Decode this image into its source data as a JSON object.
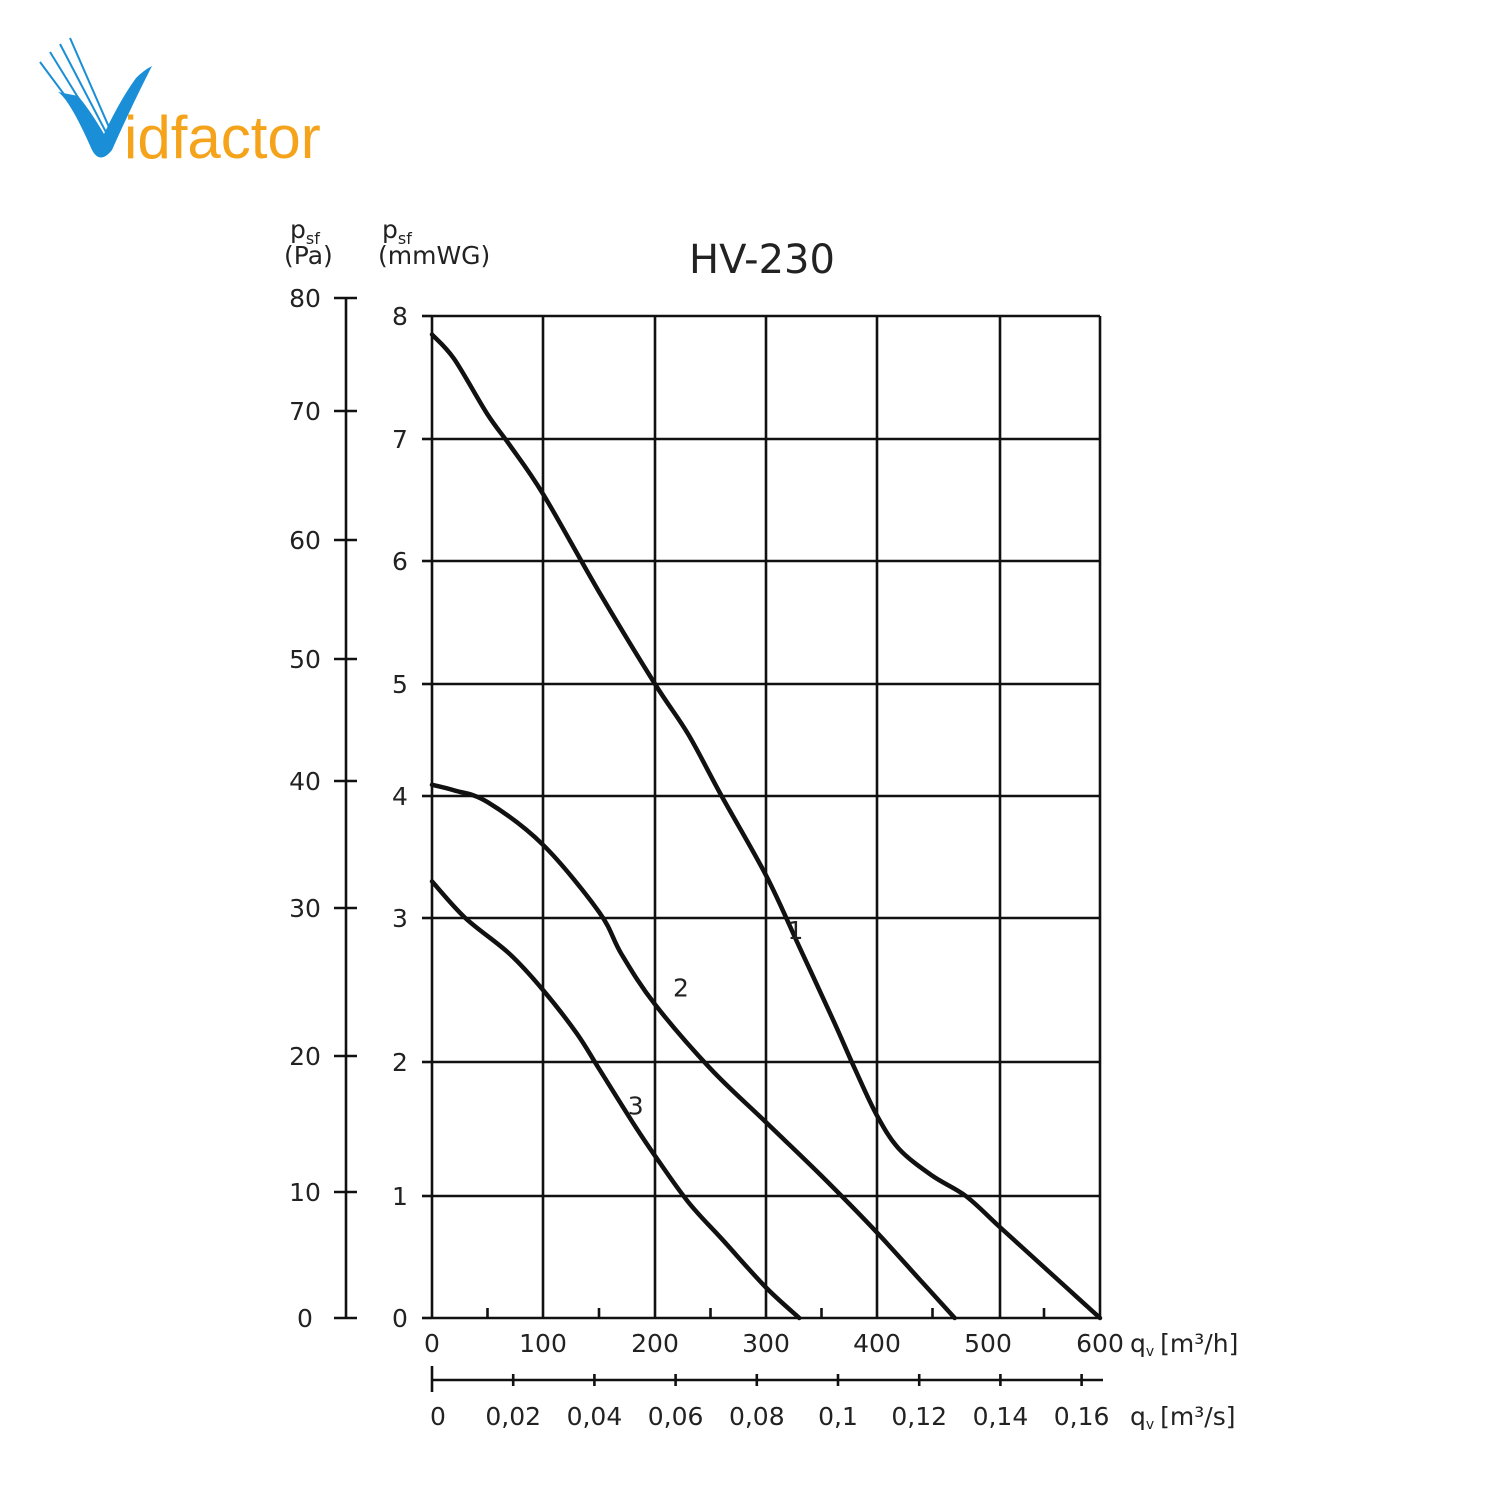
{
  "logo": {
    "text_v": "V",
    "text_rest": "idfactor",
    "color_blue": "#1a8ed6",
    "color_orange": "#f5a31b"
  },
  "chart_data": {
    "type": "line",
    "title": "HV-230",
    "axes": {
      "y_pa": {
        "label_main": "p",
        "label_sub": "sf",
        "label_unit": "(Pa)",
        "ticks": [
          0,
          10,
          20,
          30,
          40,
          50,
          60,
          70,
          80
        ],
        "range": [
          0,
          80
        ]
      },
      "y_mmwg": {
        "label_main": "p",
        "label_sub": "sf",
        "label_unit": "(mmWG)",
        "ticks": [
          0,
          1,
          2,
          3,
          4,
          5,
          6,
          7,
          8
        ],
        "range": [
          0,
          8
        ]
      },
      "x_m3h": {
        "label_main": "q",
        "label_sub": "v",
        "label_unit": "[m³/h]",
        "ticks": [
          0,
          100,
          200,
          300,
          400,
          500,
          600
        ],
        "range": [
          0,
          600
        ]
      },
      "x_m3s": {
        "label_main": "q",
        "label_sub": "v",
        "label_unit": "[m³/s]",
        "ticks": [
          "0",
          "0,02",
          "0,04",
          "0,06",
          "0,08",
          "0,1",
          "0,12",
          "0,14",
          "0,16"
        ]
      }
    },
    "grid": true,
    "series": [
      {
        "name": "1",
        "x": [
          0,
          20,
          50,
          70,
          100,
          150,
          200,
          230,
          260,
          300,
          330,
          360,
          380,
          400,
          420,
          450,
          480,
          510,
          540,
          570,
          600
        ],
        "y": [
          7.85,
          7.65,
          7.2,
          6.95,
          6.55,
          5.75,
          5.0,
          4.55,
          4.0,
          3.35,
          2.8,
          2.3,
          1.95,
          1.6,
          1.35,
          1.15,
          1.0,
          0.75,
          0.5,
          0.25,
          0
        ]
      },
      {
        "name": "2",
        "x": [
          0,
          20,
          50,
          100,
          150,
          170,
          200,
          250,
          300,
          350,
          400,
          440,
          470
        ],
        "y": [
          4.1,
          4.05,
          3.95,
          3.6,
          3.05,
          2.75,
          2.4,
          1.95,
          1.55,
          1.15,
          0.7,
          0.3,
          0
        ]
      },
      {
        "name": "3",
        "x": [
          0,
          30,
          70,
          100,
          130,
          150,
          180,
          200,
          230,
          260,
          300,
          330
        ],
        "y": [
          3.3,
          3.0,
          2.75,
          2.5,
          2.2,
          1.95,
          1.55,
          1.3,
          0.95,
          0.65,
          0.25,
          0
        ]
      }
    ]
  }
}
